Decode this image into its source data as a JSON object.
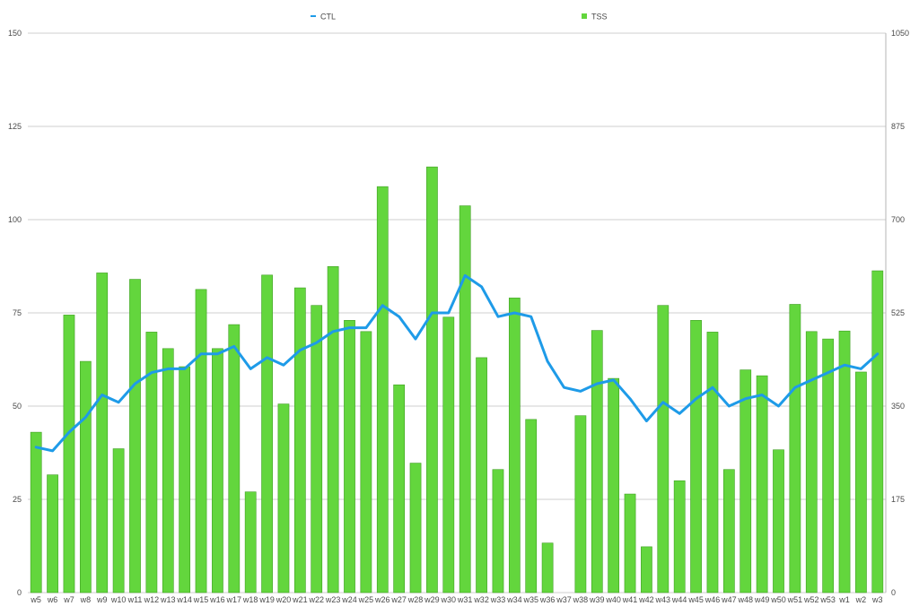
{
  "legend": {
    "ctl_label": "CTL",
    "tss_label": "TSS"
  },
  "colors": {
    "ctl": "#1e9be8",
    "tss_fill": "#63d63d",
    "tss_stroke": "#3f9f22"
  },
  "chart_data": {
    "type": "bar",
    "categories": [
      "w5",
      "w6",
      "w7",
      "w8",
      "w9",
      "w10",
      "w11",
      "w12",
      "w13",
      "w14",
      "w15",
      "w16",
      "w17",
      "w18",
      "w19",
      "w20",
      "w21",
      "w22",
      "w23",
      "w24",
      "w25",
      "w26",
      "w27",
      "w28",
      "w29",
      "w30",
      "w31",
      "w32",
      "w33",
      "w34",
      "w35",
      "w36",
      "w37",
      "w38",
      "w39",
      "w40",
      "w41",
      "w42",
      "w43",
      "w44",
      "w45",
      "w46",
      "w47",
      "w48",
      "w49",
      "w50",
      "w51",
      "w52",
      "w53",
      "w1",
      "w2",
      "w3"
    ],
    "legend_position": "top",
    "grid": true,
    "left_axis": {
      "min": 0,
      "max": 150,
      "ticks": [
        "0",
        "25",
        "50",
        "75",
        "100",
        "125",
        "150"
      ],
      "tick_values": [
        0,
        25,
        50,
        75,
        100,
        125,
        150
      ]
    },
    "right_axis": {
      "min": 0,
      "max": 1050,
      "ticks": [
        "0",
        "175",
        "350",
        "525",
        "700",
        "875",
        "1050"
      ],
      "tick_values": [
        0,
        175,
        350,
        525,
        700,
        875,
        1050
      ]
    },
    "series": [
      {
        "name": "TSS",
        "type": "bar",
        "axis": "right",
        "values": [
          301,
          221,
          521,
          434,
          600,
          270,
          588,
          489,
          458,
          424,
          569,
          458,
          503,
          189,
          596,
          354,
          572,
          539,
          612,
          511,
          490,
          762,
          390,
          243,
          799,
          517,
          726,
          441,
          231,
          553,
          325,
          93,
          0,
          332,
          492,
          402,
          185,
          86,
          539,
          210,
          511,
          489,
          231,
          418,
          407,
          268,
          541,
          490,
          476,
          491,
          414,
          604
        ]
      },
      {
        "name": "CTL",
        "type": "line",
        "axis": "left",
        "values": [
          39,
          38,
          43,
          47,
          53,
          51,
          56,
          59,
          60,
          60,
          64,
          64,
          66,
          60,
          63,
          61,
          65,
          67,
          70,
          71,
          71,
          77,
          74,
          68,
          75,
          75,
          85,
          82,
          74,
          75,
          74,
          62,
          55,
          54,
          56,
          57,
          52,
          46,
          51,
          48,
          52,
          55,
          50,
          52,
          53,
          50,
          55,
          57,
          59,
          61,
          60,
          64
        ]
      }
    ]
  }
}
